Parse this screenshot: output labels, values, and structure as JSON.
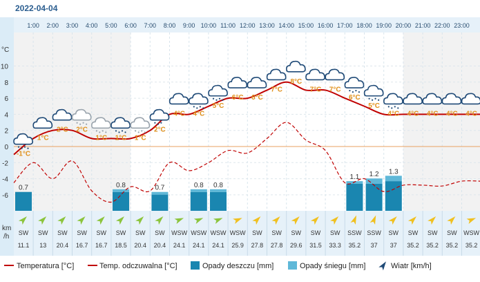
{
  "header": {
    "date": "2022-04-04"
  },
  "chart_data": {
    "type": "line",
    "hours": [
      "1:00",
      "2:00",
      "3:00",
      "4:00",
      "5:00",
      "6:00",
      "7:00",
      "8:00",
      "9:00",
      "10:00",
      "11:00",
      "12:00",
      "13:00",
      "14:00",
      "15:00",
      "16:00",
      "17:00",
      "18:00",
      "19:00",
      "20:00",
      "21:00",
      "22:00",
      "23:00"
    ],
    "y_unit": "°C",
    "y_ticks": [
      -6,
      -4,
      -2,
      0,
      2,
      4,
      6,
      8,
      10
    ],
    "ylim": [
      -8,
      12
    ],
    "temperature": [
      -1,
      1,
      2,
      2,
      1,
      1,
      1,
      2,
      4,
      4,
      5,
      6,
      6,
      7,
      8,
      7,
      7,
      6,
      5,
      4,
      4,
      4,
      4,
      4
    ],
    "temperature_labels": [
      "-1°C",
      "1°C",
      "2°C",
      "2°C",
      "1°C",
      "1°C",
      "1°C",
      "2°C",
      "4°C",
      "4°C",
      "5°C",
      "6°C",
      "6°C",
      "7°C",
      "8°C",
      "7°C",
      "7°C",
      "6°C",
      "5°C",
      "4°C",
      "4°C",
      "4°C",
      "4°C",
      "4°C"
    ],
    "feels_like": [
      -4.5,
      -2,
      -4,
      -1.8,
      -5.5,
      -6.9,
      -5,
      -5.5,
      -2,
      -3,
      -2,
      -0.5,
      -0.8,
      1,
      3,
      0.8,
      -0.5,
      -4.5,
      -4,
      -5.6,
      -4.8,
      -4.8,
      -4.9,
      -4.3
    ],
    "precip_rain": [
      0.7,
      0,
      0,
      0,
      0,
      0.7,
      0,
      0.6,
      0,
      0.7,
      0.7,
      0,
      0,
      0,
      0,
      0,
      0,
      1.0,
      1.0,
      1.1,
      0,
      0,
      0,
      0
    ],
    "precip_snow": [
      0,
      0,
      0,
      0,
      0,
      0.1,
      0,
      0.1,
      0,
      0.1,
      0.1,
      0,
      0,
      0,
      0,
      0,
      0,
      0.1,
      0.2,
      0.2,
      0,
      0,
      0,
      0
    ],
    "precip_labels": [
      "0.7",
      "",
      "",
      "",
      "",
      "0.8",
      "",
      "0.7",
      "",
      "0.8",
      "0.8",
      "",
      "",
      "",
      "",
      "",
      "",
      "1.1",
      "1.2",
      "1.3",
      "",
      "",
      "",
      ""
    ],
    "weather_icons": [
      "cloud-rain-snow-icon",
      "cloud-icon",
      "cloud-icon",
      "cloud-sleet-icon",
      "cloud-sleet-icon",
      "cloud-rain-snow-icon",
      "cloud-sleet-icon",
      "cloud-rain-icon",
      "cloud-icon",
      "cloud-rain-snow-icon",
      "cloud-rain-snow-icon",
      "cloud-icon",
      "cloud-icon",
      "cloud-icon",
      "cloud-icon",
      "cloud-icon",
      "cloud-icon",
      "cloud-rain-snow-icon",
      "cloud-rain-snow-icon",
      "cloud-rain-snow-icon",
      "cloud-icon",
      "cloud-icon",
      "cloud-icon",
      "cloud-icon"
    ],
    "wind_unit": "km/h",
    "wind_dir": [
      "SW",
      "SW",
      "SW",
      "SW",
      "SW",
      "SW",
      "SW",
      "SW",
      "WSW",
      "WSW",
      "WSW",
      "WSW",
      "SW",
      "SW",
      "SW",
      "SW",
      "SW",
      "SSW",
      "SSW",
      "SW",
      "SW",
      "SW",
      "SW",
      "WSW"
    ],
    "wind_speed": [
      "11.1",
      "13",
      "20.4",
      "16.7",
      "16.7",
      "18.5",
      "20.4",
      "20.4",
      "24.1",
      "24.1",
      "24.1",
      "25.9",
      "27.8",
      "27.8",
      "29.6",
      "31.5",
      "33.3",
      "35.2",
      "37",
      "37",
      "35.2",
      "35.2",
      "35.2",
      "35.2"
    ],
    "legend": [
      "Temperatura [°C]",
      "Temp. odczuwalna [°C]",
      "Opady deszczu [mm]",
      "Opady śniegu [mm]",
      "Wiatr [km/h]"
    ],
    "colors": {
      "temperature": "#c00000",
      "feels_like": "#c00000",
      "rain": "#1a86b0",
      "snow": "#5fb8d8",
      "zero_line": "#e8a060",
      "wind_light": "#8cc43c",
      "wind_strong": "#f0c020",
      "label": "#e0901a"
    }
  }
}
